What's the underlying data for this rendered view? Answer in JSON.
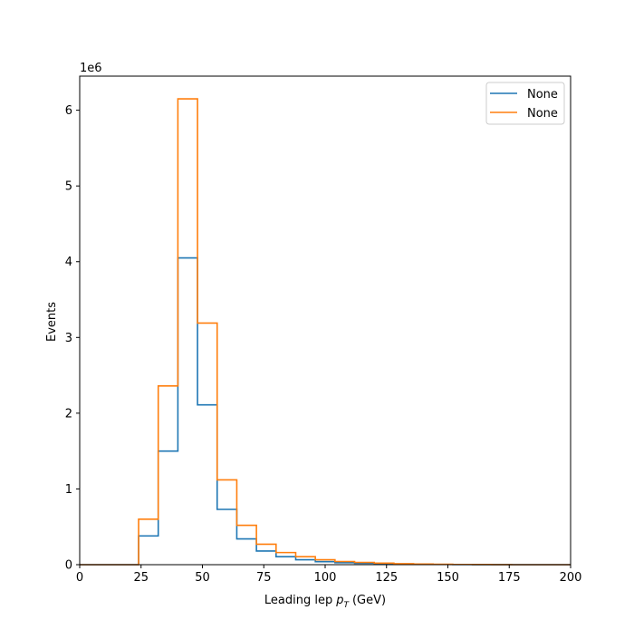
{
  "chart_data": {
    "type": "histogram-step",
    "xlabel": "Leading lep",
    "xlabel_math_var": "p",
    "xlabel_math_sub": "T",
    "xlabel_unit": "(GeV)",
    "ylabel": "Events",
    "y_multiplier": "1e6",
    "xlim": [
      0,
      200
    ],
    "ylim": [
      0,
      6.45
    ],
    "x_ticks": [
      0,
      25,
      50,
      75,
      100,
      125,
      150,
      175,
      200
    ],
    "x_tick_labels": [
      "0",
      "25",
      "50",
      "75",
      "100",
      "125",
      "150",
      "175",
      "200"
    ],
    "y_ticks": [
      0,
      1,
      2,
      3,
      4,
      5,
      6
    ],
    "y_tick_labels": [
      "0",
      "1",
      "2",
      "3",
      "4",
      "5",
      "6"
    ],
    "bin_edges": [
      0,
      8,
      16,
      24,
      32,
      40,
      48,
      56,
      64,
      72,
      80,
      88,
      96,
      104,
      112,
      120,
      128,
      136,
      144,
      152,
      160,
      168,
      176,
      184,
      192,
      200
    ],
    "legend_position": "top-right",
    "grid": false,
    "series": [
      {
        "name": "None",
        "color": "#1f77b4",
        "values": [
          0,
          0,
          0,
          0.38,
          1.5,
          4.05,
          2.11,
          0.73,
          0.34,
          0.18,
          0.105,
          0.065,
          0.04,
          0.026,
          0.018,
          0.012,
          0.008,
          0.005,
          0.003,
          0.002,
          0.001,
          0.0005,
          0,
          0,
          0
        ]
      },
      {
        "name": "None",
        "color": "#ff7f0e",
        "values": [
          0,
          0,
          0,
          0.6,
          2.36,
          6.15,
          3.19,
          1.12,
          0.52,
          0.27,
          0.16,
          0.105,
          0.065,
          0.042,
          0.03,
          0.02,
          0.013,
          0.008,
          0.005,
          0.003,
          0.002,
          0.001,
          0,
          0,
          0
        ]
      }
    ]
  }
}
